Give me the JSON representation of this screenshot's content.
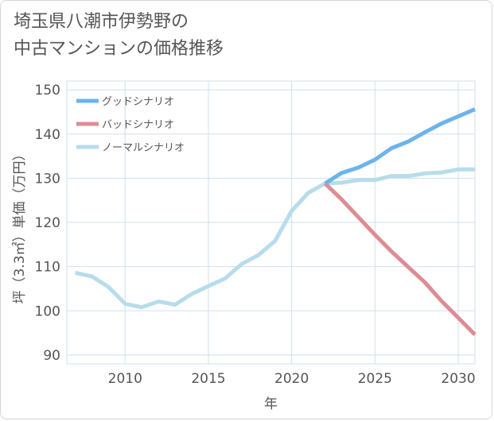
{
  "title_lines": [
    "埼玉県八潮市伊勢野の",
    "中古マンションの価格推移"
  ],
  "colors": {
    "good": "#6cb4ea",
    "bad": "#de8c94",
    "normal": "#b7dcec",
    "grid": "#cfe1ee",
    "axis": "#555555"
  },
  "chart_data": {
    "type": "line",
    "title": "埼玉県八潮市伊勢野の中古マンションの価格推移",
    "xlabel": "年",
    "ylabel": "坪（3.3㎡）単価（万円）",
    "xlim": [
      2006.5,
      2031
    ],
    "ylim": [
      88,
      152
    ],
    "xticks": [
      2010,
      2015,
      2020,
      2025,
      2030
    ],
    "yticks": [
      90,
      100,
      110,
      120,
      130,
      140,
      150
    ],
    "legend_position": "top-left",
    "series": [
      {
        "name": "グッドシナリオ",
        "key": "good",
        "x": [
          2022,
          2023,
          2024,
          2025,
          2026,
          2027,
          2028,
          2029,
          2030,
          2031
        ],
        "y": [
          128.8,
          131.2,
          132.4,
          134.2,
          136.8,
          138.3,
          140.4,
          142.4,
          144.0,
          145.6
        ]
      },
      {
        "name": "バッドシナリオ",
        "key": "bad",
        "x": [
          2022,
          2023,
          2024,
          2025,
          2026,
          2027,
          2028,
          2029,
          2030,
          2031
        ],
        "y": [
          128.8,
          125.2,
          121.2,
          117.2,
          113.4,
          109.9,
          106.4,
          102.2,
          98.4,
          94.6
        ]
      },
      {
        "name": "ノーマルシナリオ",
        "key": "normal",
        "x": [
          2007,
          2008,
          2009,
          2010,
          2011,
          2012,
          2013,
          2014,
          2015,
          2016,
          2017,
          2018,
          2019,
          2020,
          2021,
          2022,
          2023,
          2024,
          2025,
          2026,
          2027,
          2028,
          2029,
          2030,
          2031
        ],
        "y": [
          108.6,
          107.8,
          105.4,
          101.6,
          100.8,
          102.1,
          101.4,
          103.8,
          105.6,
          107.3,
          110.6,
          112.6,
          115.8,
          122.6,
          126.7,
          128.8,
          129.0,
          129.6,
          129.6,
          130.5,
          130.5,
          131.1,
          131.3,
          132.0,
          132.0
        ]
      }
    ]
  }
}
